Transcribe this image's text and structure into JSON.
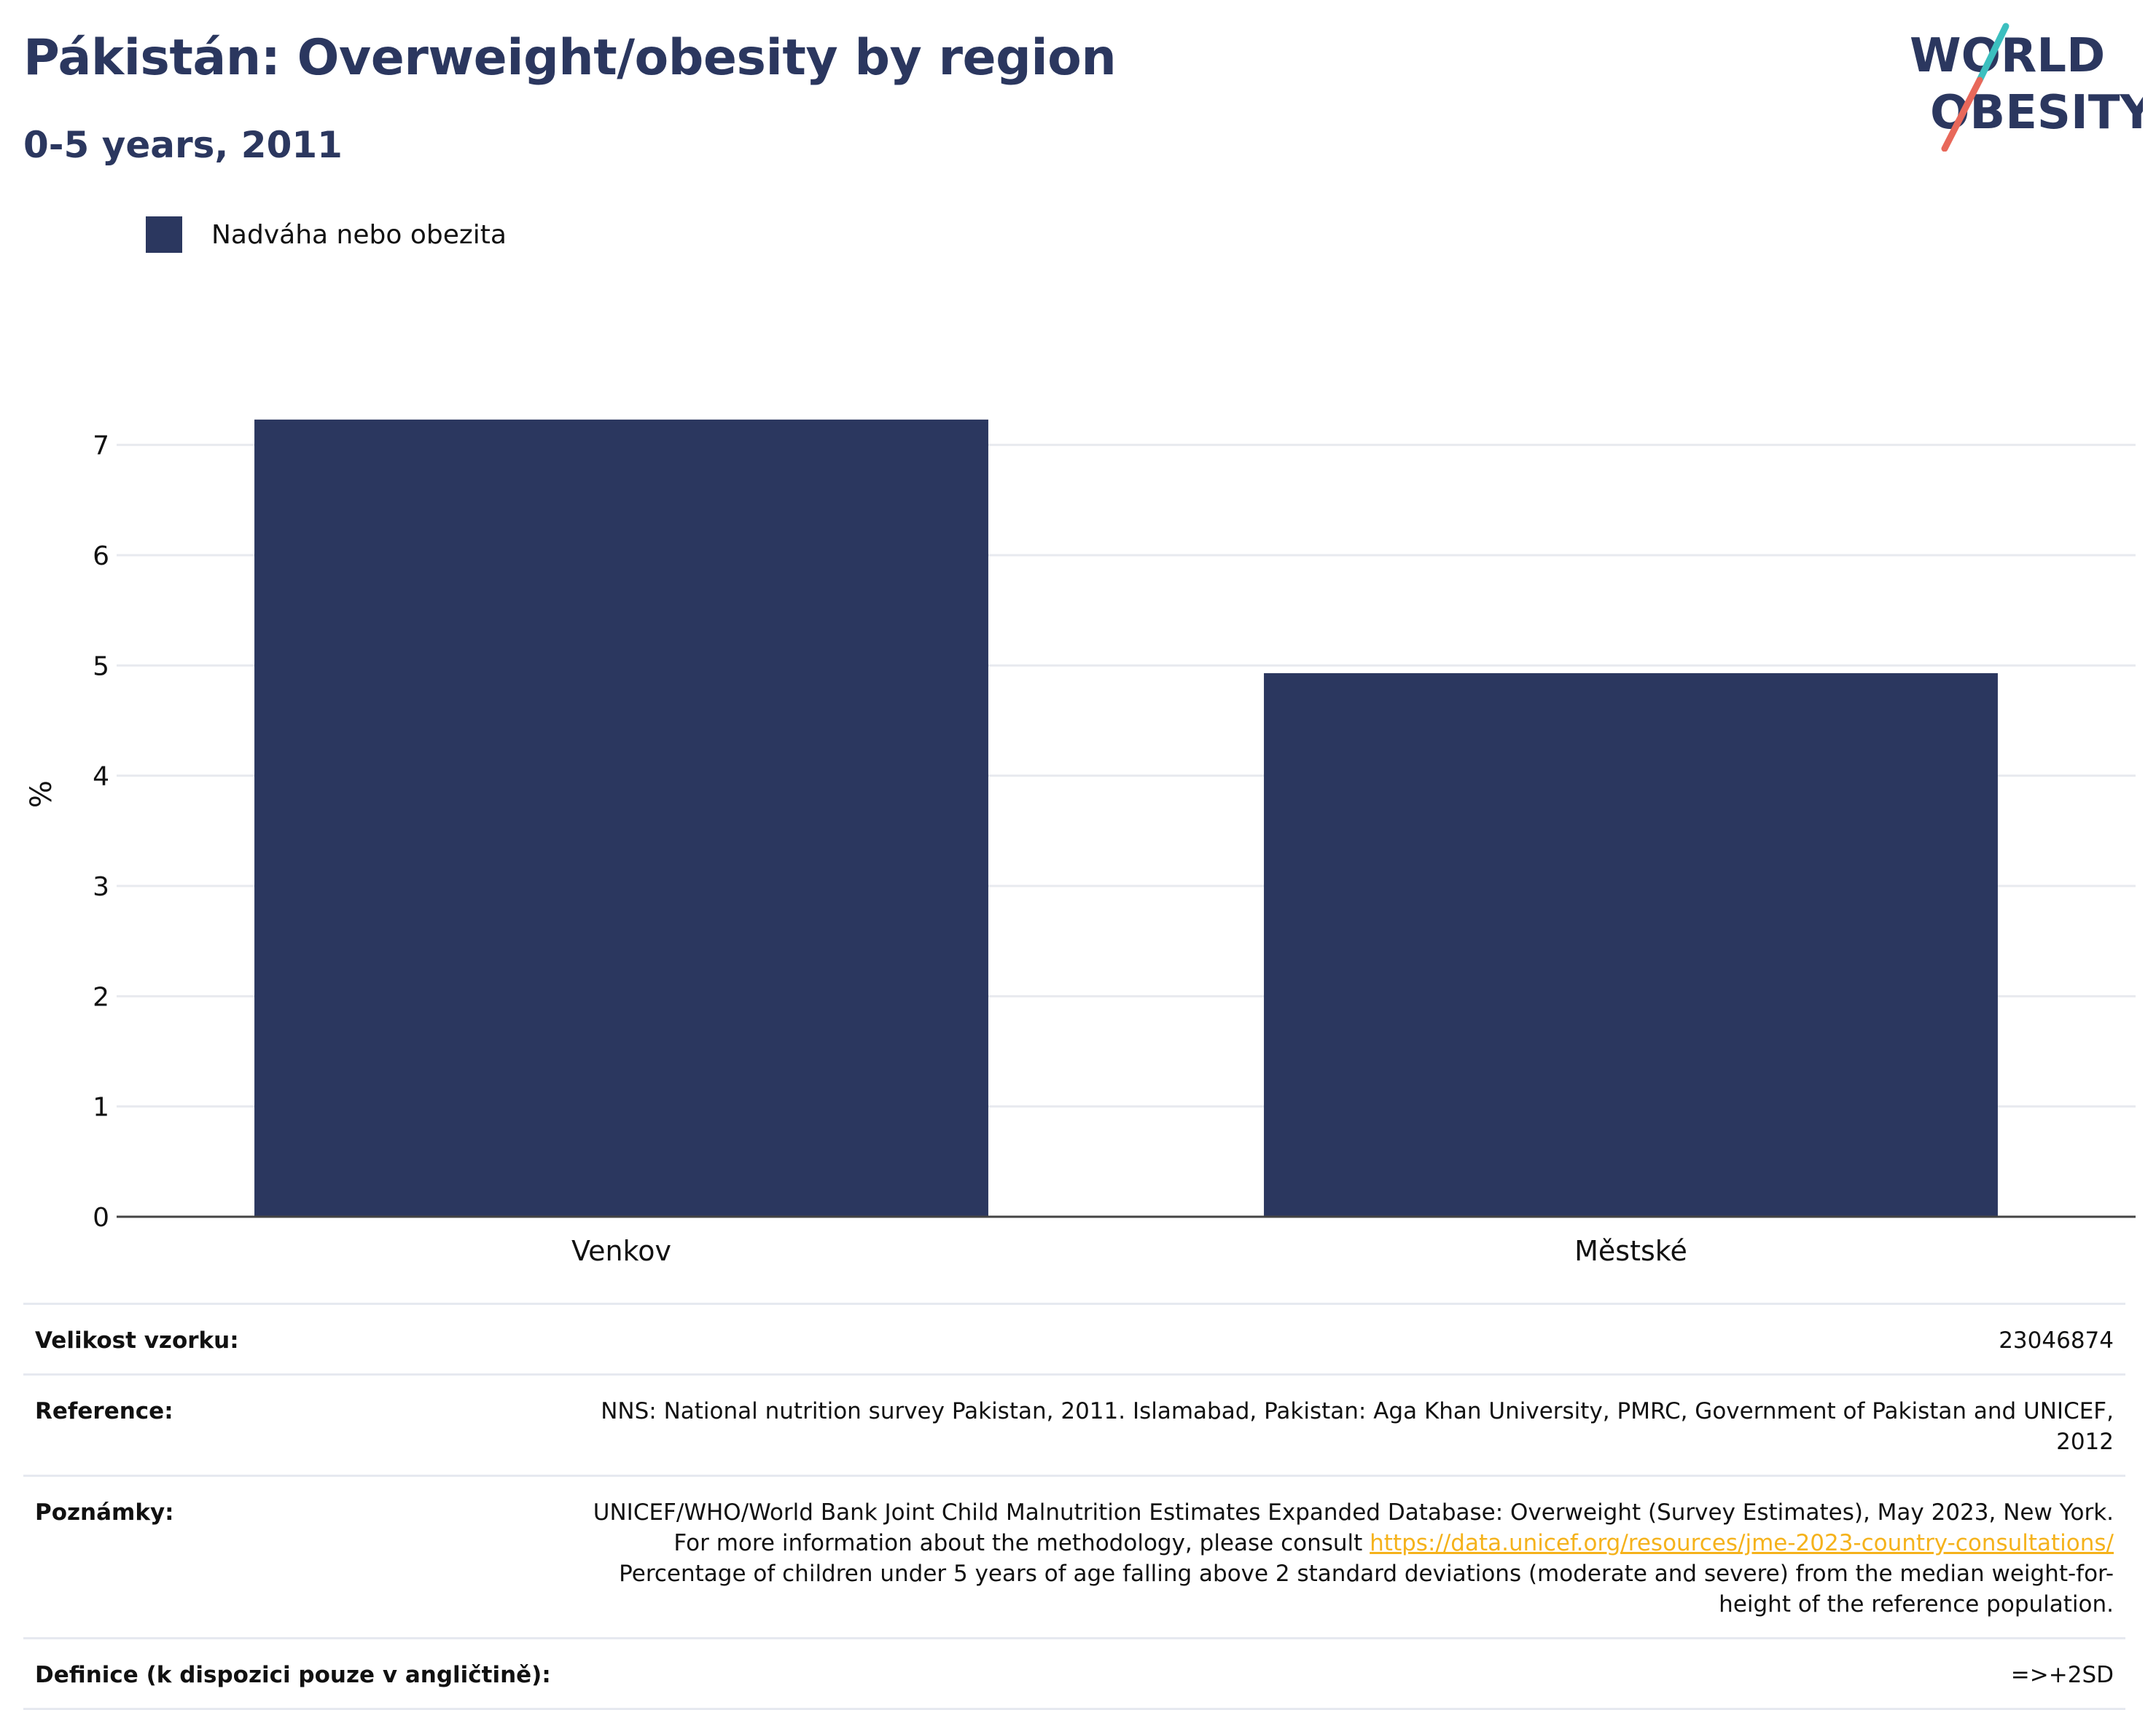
{
  "header": {
    "title": "Pákistán: Overweight/obesity by region",
    "subtitle": "0-5 years, 2011"
  },
  "logo": {
    "line1": "WORLD",
    "line2": "OBESITY"
  },
  "colors": {
    "bar": "#2b375f",
    "brand_teal": "#3cbfbf",
    "brand_coral": "#e8685a",
    "link": "#f5b21b"
  },
  "chart_data": {
    "type": "bar",
    "categories": [
      "Venkov",
      "Městské"
    ],
    "series": [
      {
        "name": "Nadváha nebo obezita",
        "values": [
          7.23,
          4.93
        ]
      }
    ],
    "ylabel": "%",
    "xlabel": "",
    "ylim": [
      0,
      7.5
    ],
    "yticks": [
      0,
      1,
      2,
      3,
      4,
      5,
      6,
      7
    ],
    "grid": true,
    "legend_position": "top-left"
  },
  "info": {
    "sample_label": "Velikost vzorku:",
    "sample_value": "23046874",
    "reference_label": "Reference:",
    "reference_value": "NNS: National nutrition survey Pakistan, 2011. Islamabad, Pakistan: Aga Khan University, PMRC, Government of Pakistan and UNICEF, 2012",
    "notes_label": "Poznámky:",
    "notes_text_1": "UNICEF/WHO/World Bank Joint Child Malnutrition Estimates Expanded Database: Overweight (Survey Estimates), May 2023, New York. For more information about the methodology, please consult ",
    "notes_link": "https://data.unicef.org/resources/jme-2023-country-consultations/",
    "notes_text_2": " Percentage of children under 5 years of age falling above 2 standard deviations (moderate and severe) from the median weight-for-height of the reference population.",
    "definition_label": "Definice (k dispozici pouze v angličtině):",
    "definition_value": "=>+2SD"
  }
}
